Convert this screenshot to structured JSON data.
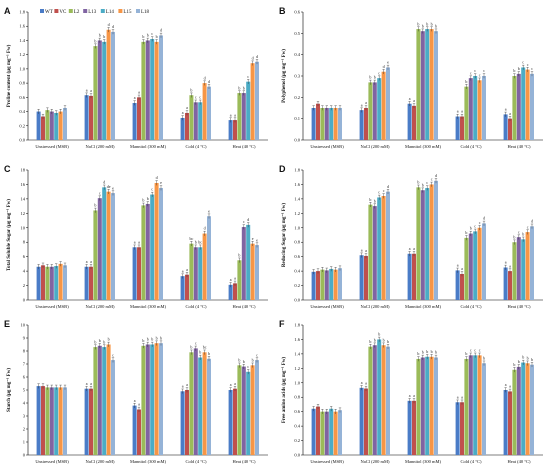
{
  "colors": {
    "WT": "#4a7cc7",
    "VC": "#c0504d",
    "L2": "#9bbb59",
    "L13": "#8064a2",
    "L14": "#4bacc6",
    "L15": "#f79646",
    "L18": "#95b3d7"
  },
  "legend": [
    "WT",
    "VC",
    "L2",
    "L13",
    "L14",
    "L15",
    "L18"
  ],
  "categories": [
    "Unstressed (MSB)",
    "NaCl (200 mM)",
    "Mannitol (300 mM)",
    "Cold (4 °C)",
    "Heat (40 °C)"
  ],
  "chart_data": [
    {
      "type": "bar",
      "panel": "A",
      "ylabel": "Proline content (µg mg⁻¹ Fw)",
      "ylim": [
        0,
        1.8
      ],
      "yticks": [
        0,
        0.2,
        0.4,
        0.6,
        0.8,
        1.0,
        1.2,
        1.4,
        1.6,
        1.8
      ],
      "decimals": 1,
      "values": [
        [
          0.4,
          0.33,
          0.42,
          0.4,
          0.38,
          0.4,
          0.45
        ],
        [
          0.63,
          0.62,
          1.32,
          1.4,
          1.38,
          1.55,
          1.52
        ],
        [
          0.52,
          0.6,
          1.38,
          1.4,
          1.42,
          1.38,
          1.47
        ],
        [
          0.31,
          0.38,
          0.63,
          0.53,
          0.53,
          0.8,
          0.75
        ],
        [
          0.28,
          0.28,
          0.66,
          0.66,
          0.82,
          1.08,
          1.1
        ]
      ],
      "labels": [
        [
          "",
          "",
          "",
          "",
          "",
          "",
          ""
        ],
        [
          "a",
          "a",
          "b",
          "b",
          "b",
          "d",
          "d"
        ],
        [
          "a",
          "a",
          "b",
          "b",
          "c",
          "b",
          "d"
        ],
        [
          "a",
          "a",
          "b",
          "c",
          "c",
          "d",
          "d"
        ],
        [
          "a",
          "a",
          "b",
          "b",
          "c",
          "d",
          "d"
        ]
      ]
    },
    {
      "type": "bar",
      "panel": "B",
      "ylabel": "Polyphenol (µg mg⁻¹ Fw)",
      "ylim": [
        0,
        0.6
      ],
      "yticks": [
        0,
        0.1,
        0.2,
        0.3,
        0.4,
        0.5,
        0.6
      ],
      "decimals": 1,
      "values": [
        [
          0.15,
          0.17,
          0.15,
          0.15,
          0.15,
          0.15,
          0.15
        ],
        [
          0.14,
          0.15,
          0.27,
          0.27,
          0.29,
          0.32,
          0.34
        ],
        [
          0.17,
          0.16,
          0.52,
          0.51,
          0.52,
          0.52,
          0.51
        ],
        [
          0.11,
          0.11,
          0.25,
          0.29,
          0.3,
          0.28,
          0.3
        ],
        [
          0.12,
          0.1,
          0.3,
          0.31,
          0.34,
          0.33,
          0.31
        ]
      ],
      "labels": [
        [
          "",
          "",
          "",
          "",
          "",
          "",
          ""
        ],
        [
          "a",
          "a",
          "b",
          "b",
          "c",
          "d",
          "e"
        ],
        [
          "a",
          "a",
          "b",
          "b",
          "b",
          "b",
          "b"
        ],
        [
          "a",
          "a",
          "b",
          "c",
          "c",
          "c",
          "c"
        ],
        [
          "a",
          "a",
          "b",
          "b",
          "c",
          "c",
          "c"
        ]
      ]
    },
    {
      "type": "bar",
      "panel": "C",
      "ylabel": "Total Soluble Sugar (µg mg⁻¹ Fw)",
      "ylim": [
        0,
        18
      ],
      "yticks": [
        0,
        2,
        4,
        6,
        8,
        10,
        12,
        14,
        16,
        18
      ],
      "decimals": 0,
      "values": [
        [
          4.6,
          4.8,
          4.6,
          4.6,
          4.7,
          5.0,
          4.8
        ],
        [
          4.6,
          4.6,
          12.4,
          14.1,
          15.6,
          15.0,
          14.8
        ],
        [
          7.3,
          7.3,
          13.1,
          13.3,
          14.6,
          16.2,
          15.5
        ],
        [
          3.3,
          3.5,
          7.8,
          7.3,
          7.3,
          9.2,
          11.6
        ],
        [
          2.1,
          2.3,
          5.5,
          10.1,
          10.4,
          7.8,
          7.6
        ]
      ],
      "labels": [
        [
          "",
          "",
          "",
          "",
          "",
          "",
          ""
        ],
        [
          "a",
          "a",
          "b",
          "c",
          "d",
          "de",
          "e"
        ],
        [
          "a",
          "a",
          "b",
          "b",
          "c",
          "d",
          "e"
        ],
        [
          "a",
          "a",
          "bc",
          "b",
          "bc",
          "d",
          "e"
        ],
        [
          "a",
          "a",
          "b",
          "c",
          "d",
          "e",
          "e"
        ]
      ]
    },
    {
      "type": "bar",
      "panel": "D",
      "ylabel": "Reducing Sugar (µg mg⁻¹ Fw)",
      "ylim": [
        0,
        1.8
      ],
      "yticks": [
        0,
        0.2,
        0.4,
        0.6,
        0.8,
        1.0,
        1.2,
        1.4,
        1.6,
        1.8
      ],
      "decimals": 1,
      "values": [
        [
          0.39,
          0.4,
          0.42,
          0.41,
          0.43,
          0.42,
          0.44
        ],
        [
          0.62,
          0.61,
          1.32,
          1.3,
          1.42,
          1.44,
          1.5
        ],
        [
          0.64,
          0.64,
          1.56,
          1.52,
          1.55,
          1.6,
          1.65
        ],
        [
          0.41,
          0.36,
          0.86,
          0.92,
          0.95,
          1.0,
          1.06
        ],
        [
          0.45,
          0.4,
          0.8,
          0.87,
          0.84,
          0.94,
          1.02
        ]
      ],
      "labels": [
        [
          "",
          "",
          "",
          "",
          "",
          "",
          ""
        ],
        [
          "a",
          "a",
          "b",
          "b",
          "c",
          "c",
          "d"
        ],
        [
          "a",
          "a",
          "b",
          "b",
          "c",
          "c",
          "d"
        ],
        [
          "a",
          "a",
          "b",
          "b",
          "c",
          "c",
          "d"
        ],
        [
          "a",
          "a",
          "b",
          "c",
          "b",
          "c",
          "d"
        ]
      ]
    },
    {
      "type": "bar",
      "panel": "E",
      "ylabel": "Starch (µg mg⁻¹ Fw)",
      "ylim": [
        0,
        10
      ],
      "yticks": [
        0,
        1,
        2,
        3,
        4,
        5,
        6,
        7,
        8,
        9,
        10
      ],
      "decimals": 0,
      "values": [
        [
          5.3,
          5.3,
          5.2,
          5.2,
          5.2,
          5.2,
          5.2
        ],
        [
          5.1,
          5.1,
          8.3,
          8.4,
          8.3,
          8.5,
          7.3
        ],
        [
          3.8,
          3.5,
          8.4,
          8.5,
          8.5,
          8.6,
          8.6
        ],
        [
          4.9,
          5.0,
          7.9,
          8.2,
          7.5,
          7.9,
          7.4
        ],
        [
          5.0,
          5.1,
          6.9,
          6.8,
          6.4,
          6.9,
          7.3
        ]
      ],
      "labels": [
        [
          "",
          "",
          "",
          "",
          "",
          "",
          ""
        ],
        [
          "a",
          "a",
          "b",
          "b",
          "b",
          "b",
          "c"
        ],
        [
          "a",
          "a",
          "b",
          "b",
          "b",
          "b",
          "b"
        ],
        [
          "a",
          "a",
          "b",
          "c",
          "b",
          "bc",
          "b"
        ],
        [
          "a",
          "a",
          "b",
          "b",
          "c",
          "b",
          "c"
        ]
      ]
    },
    {
      "type": "bar",
      "panel": "F",
      "ylabel": "Free amino acids (µg mg⁻¹ Fw)",
      "ylim": [
        0,
        1.8
      ],
      "yticks": [
        0,
        0.2,
        0.4,
        0.6,
        0.8,
        1.0,
        1.2,
        1.4,
        1.6,
        1.8
      ],
      "decimals": 1,
      "values": [
        [
          0.64,
          0.67,
          0.6,
          0.6,
          0.64,
          0.6,
          0.62
        ],
        [
          0.93,
          0.92,
          1.5,
          1.52,
          1.6,
          1.52,
          1.5
        ],
        [
          0.75,
          0.75,
          1.33,
          1.35,
          1.36,
          1.36,
          1.35
        ],
        [
          0.73,
          0.73,
          1.33,
          1.38,
          1.38,
          1.38,
          1.27
        ],
        [
          0.9,
          0.88,
          1.18,
          1.22,
          1.28,
          1.27,
          1.25
        ]
      ],
      "labels": [
        [
          "",
          "",
          "",
          "",
          "",
          "",
          ""
        ],
        [
          "a",
          "a",
          "b",
          "b",
          "b",
          "b",
          "b"
        ],
        [
          "a",
          "a",
          "b",
          "b",
          "b",
          "b",
          "b"
        ],
        [
          "a",
          "a",
          "b",
          "c",
          "c",
          "c",
          "b"
        ],
        [
          "a",
          "a",
          "b",
          "b",
          "b",
          "b",
          "b"
        ]
      ]
    }
  ]
}
